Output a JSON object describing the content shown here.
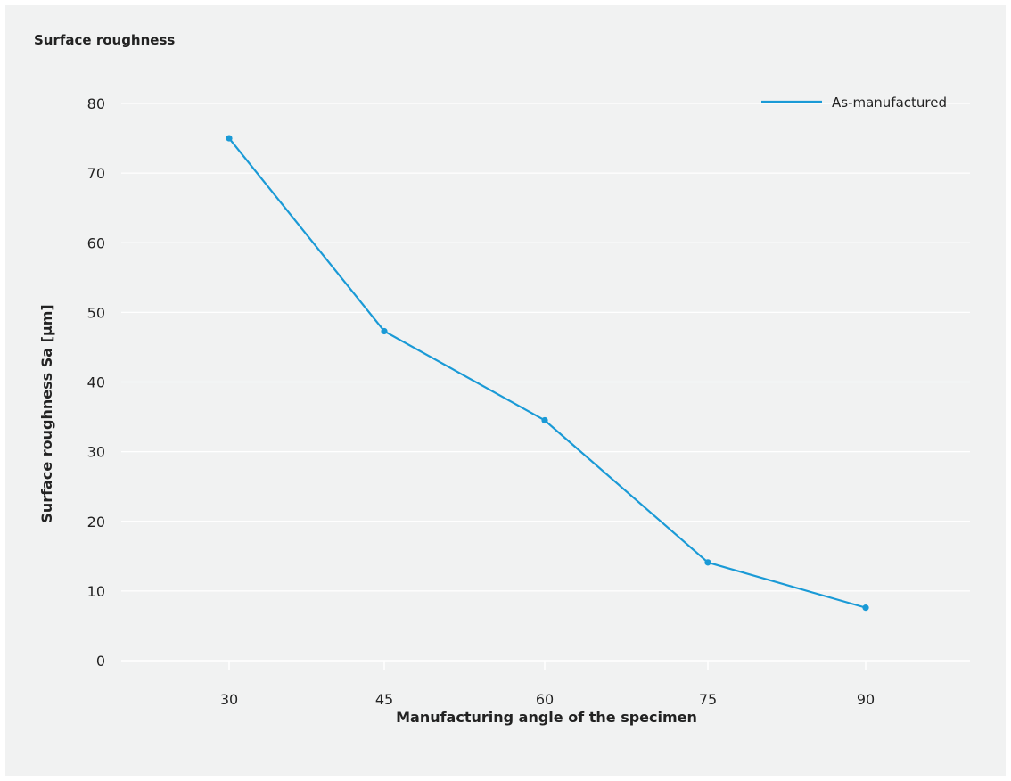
{
  "chart_data": {
    "type": "line",
    "title": "Surface roughness",
    "xlabel": "Manufacturing angle of the specimen",
    "ylabel": "Surface roughness Sa [µm]",
    "x": [
      30,
      45,
      60,
      75,
      90
    ],
    "x_tick_labels": [
      "30",
      "45",
      "60",
      "75",
      "90"
    ],
    "y_ticks": [
      0,
      10,
      20,
      30,
      40,
      50,
      60,
      70,
      80
    ],
    "y_tick_labels": [
      "0",
      "10",
      "20",
      "30",
      "40",
      "50",
      "60",
      "70",
      "80"
    ],
    "ylim": [
      0,
      80
    ],
    "grid": "horizontal",
    "legend": "top-right",
    "series": [
      {
        "name": "As-manufactured",
        "color": "#1a9ad6",
        "values": [
          75,
          47.3,
          34.5,
          14.1,
          7.6
        ]
      }
    ]
  }
}
